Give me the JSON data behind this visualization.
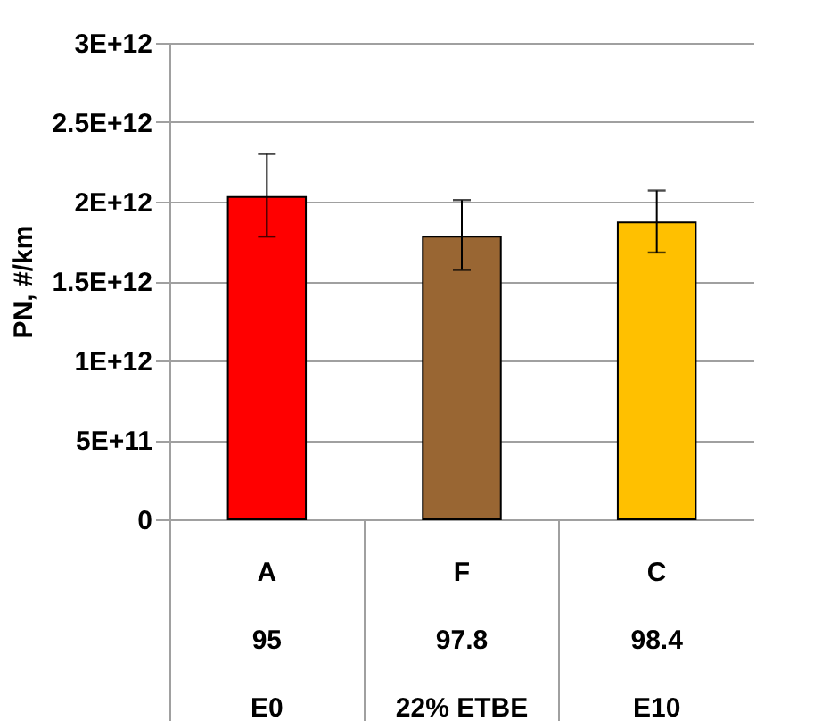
{
  "chart_data": {
    "type": "bar",
    "ylabel": "PN, #/km",
    "categories": [
      "A\n95\nE0",
      "F\n97.8\n22% ETBE",
      "C\n98.4\nE10"
    ],
    "values": [
      2030000000000.0,
      1780000000000.0,
      1870000000000.0
    ],
    "colors": [
      "#ff0000",
      "#996633",
      "#ffc000"
    ],
    "errors": [
      [
        1780000000000.0,
        2300000000000.0
      ],
      [
        1570000000000.0,
        2010000000000.0
      ],
      [
        1680000000000.0,
        2070000000000.0
      ]
    ],
    "ylim": [
      0,
      3000000000000.0
    ],
    "yticks": [
      0,
      {
        "value": 500000000000.0,
        "label": "5E+11"
      },
      {
        "value": 1000000000000.0,
        "label": "1E+12"
      },
      {
        "value": 1500000000000.0,
        "label": "1.5E+12"
      },
      {
        "value": 2000000000000.0,
        "label": "2E+12"
      },
      {
        "value": 2500000000000.0,
        "label": "2.5E+12"
      },
      {
        "value": 3000000000000.0,
        "label": "3E+12"
      }
    ],
    "grid": "y"
  }
}
